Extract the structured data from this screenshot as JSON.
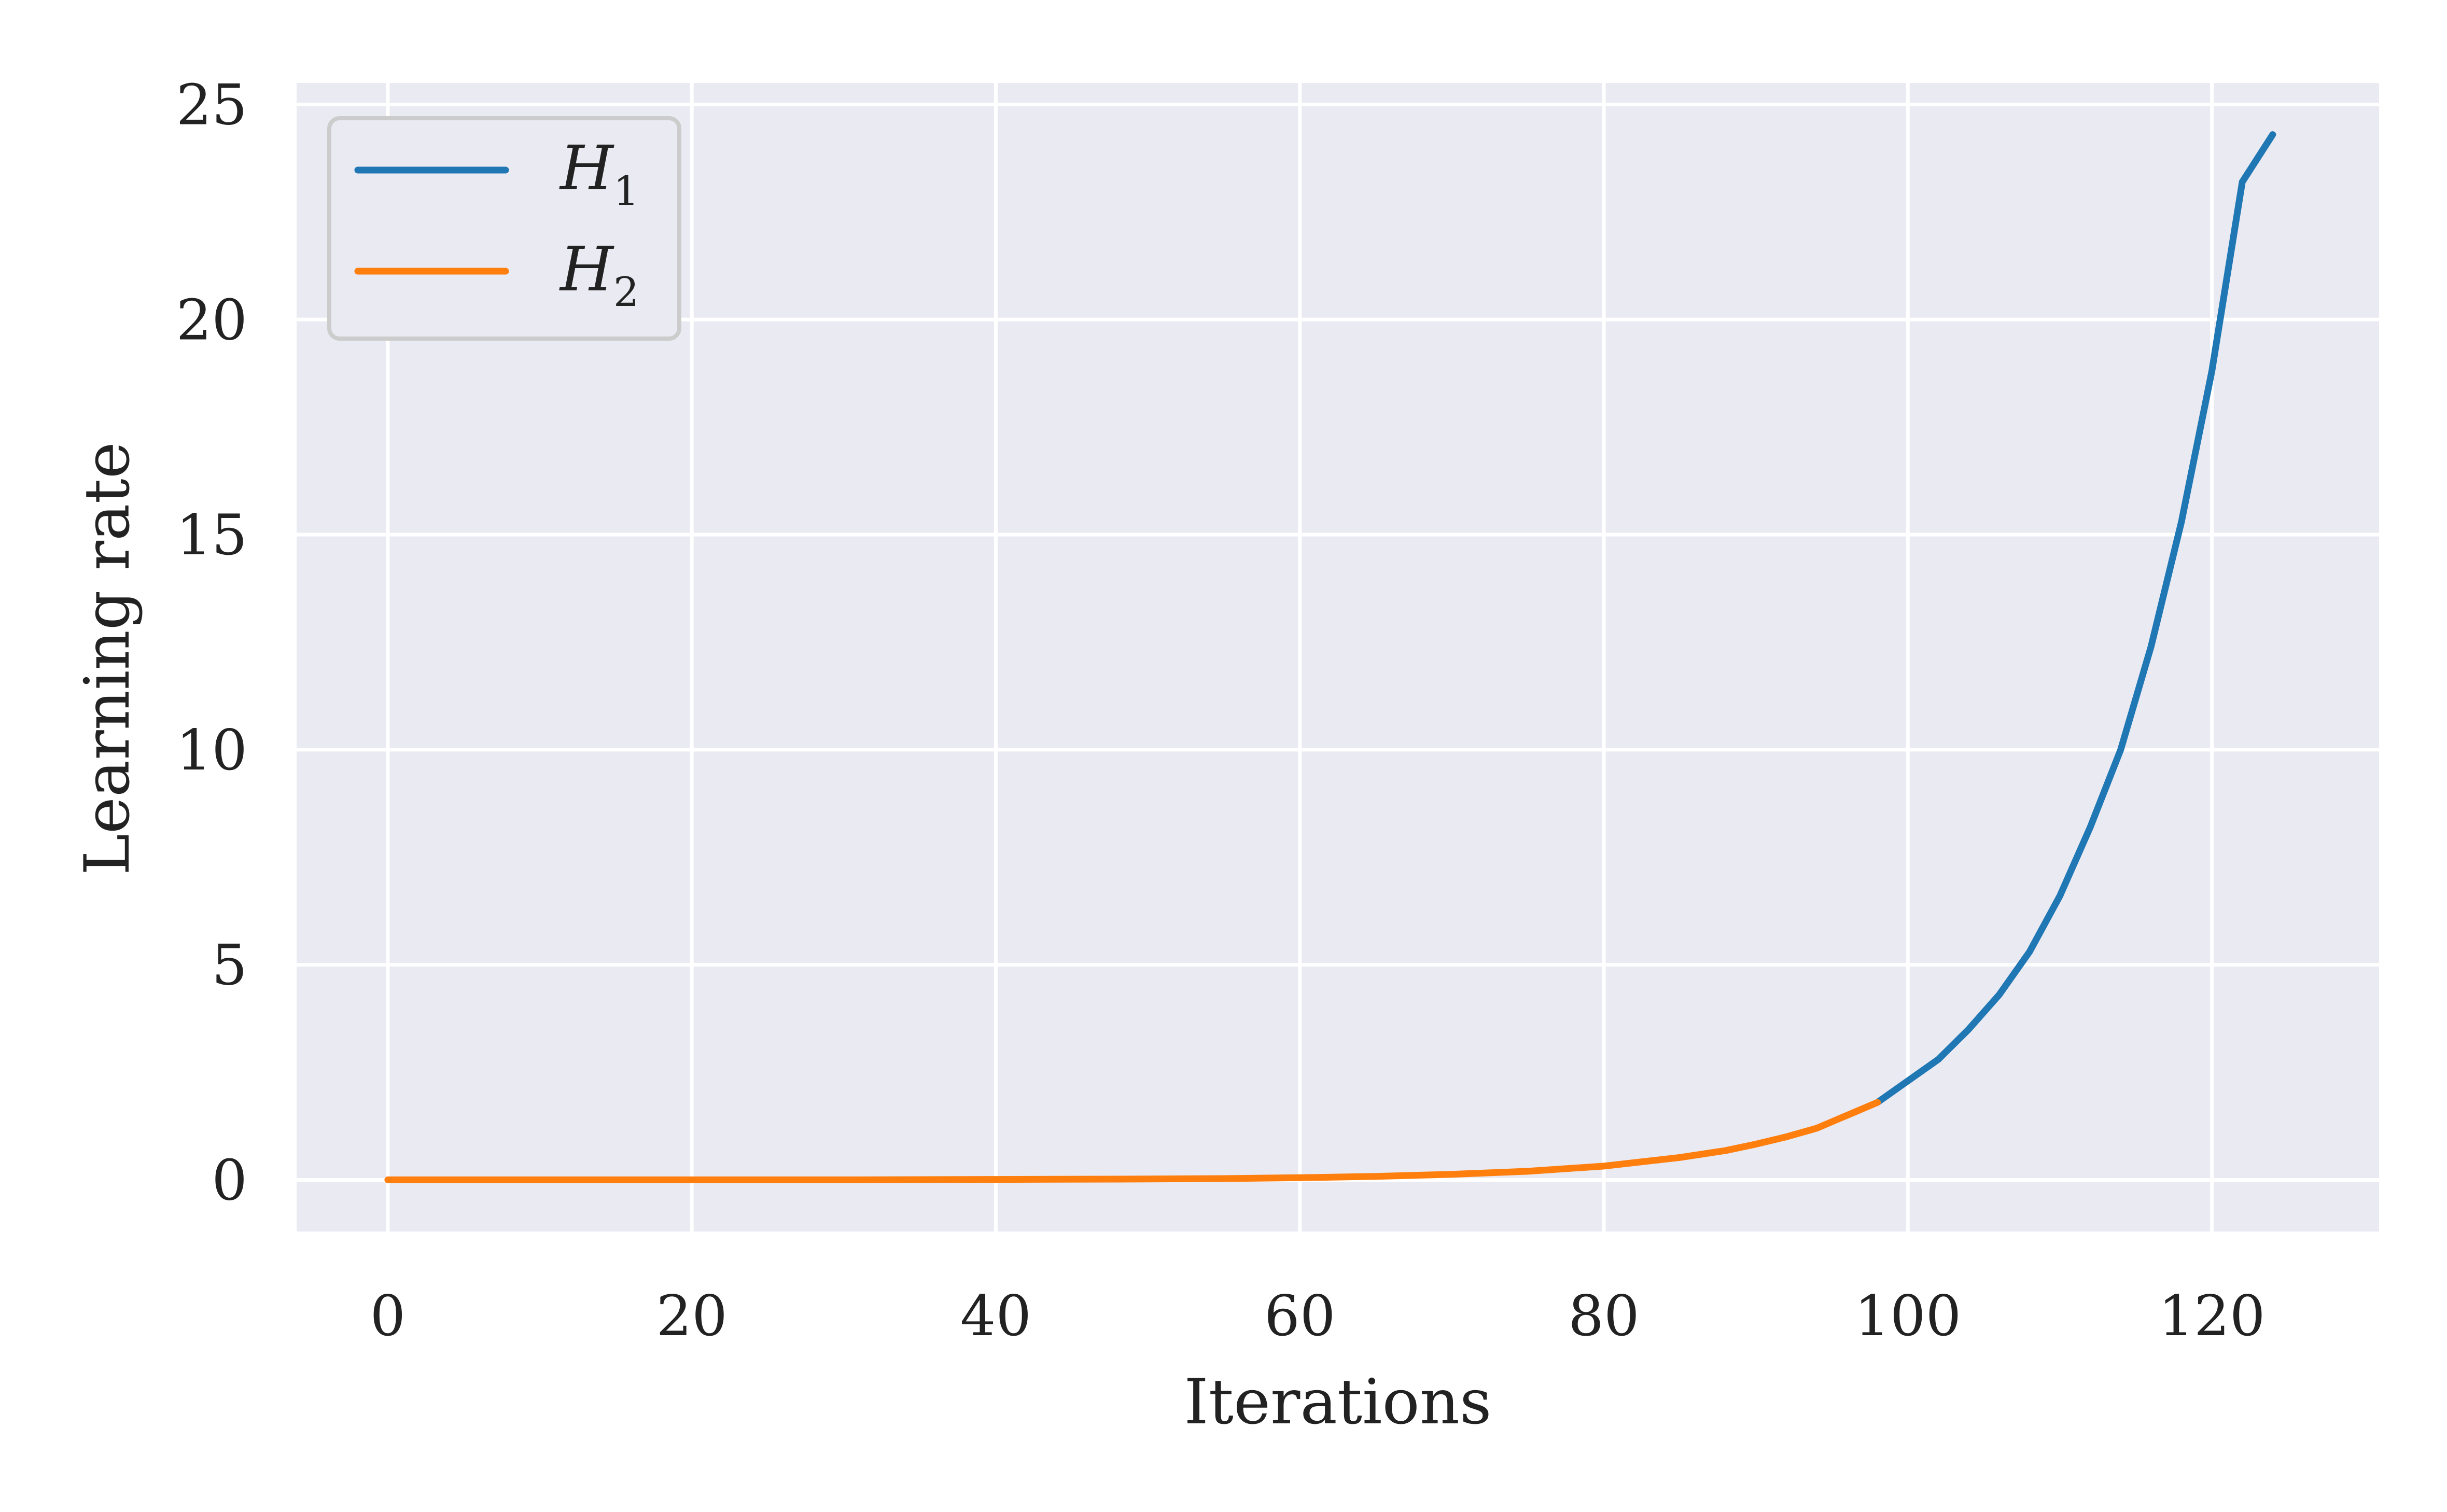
{
  "chart_data": {
    "type": "line",
    "xlabel": "Iterations",
    "ylabel": "Learning rate",
    "xlim": [
      -6,
      131
    ],
    "ylim": [
      -1.2,
      25.5
    ],
    "xticks": [
      "0",
      "20",
      "40",
      "60",
      "80",
      "100",
      "120"
    ],
    "yticks": [
      "0",
      "5",
      "10",
      "15",
      "20",
      "25"
    ],
    "grid": true,
    "legend_position": "top-left",
    "series": [
      {
        "name": "H",
        "subscript": "1",
        "color": "#1f77b4",
        "x": [
          98,
          100,
          102,
          104,
          106,
          108,
          110,
          112,
          114,
          116,
          118,
          120,
          122,
          124
        ],
        "y": [
          1.8,
          2.3,
          2.8,
          3.5,
          4.3,
          5.3,
          6.6,
          8.2,
          10.0,
          12.4,
          15.3,
          18.8,
          23.2,
          24.3
        ]
      },
      {
        "name": "H",
        "subscript": "2",
        "color": "#ff7f0e",
        "x": [
          0,
          10,
          20,
          30,
          40,
          50,
          55,
          60,
          65,
          70,
          75,
          80,
          85,
          88,
          90,
          92,
          94,
          96,
          98
        ],
        "y": [
          0,
          0,
          0,
          0,
          0.01,
          0.02,
          0.03,
          0.05,
          0.08,
          0.13,
          0.2,
          0.32,
          0.52,
          0.68,
          0.83,
          1.0,
          1.2,
          1.5,
          1.8
        ]
      }
    ]
  }
}
